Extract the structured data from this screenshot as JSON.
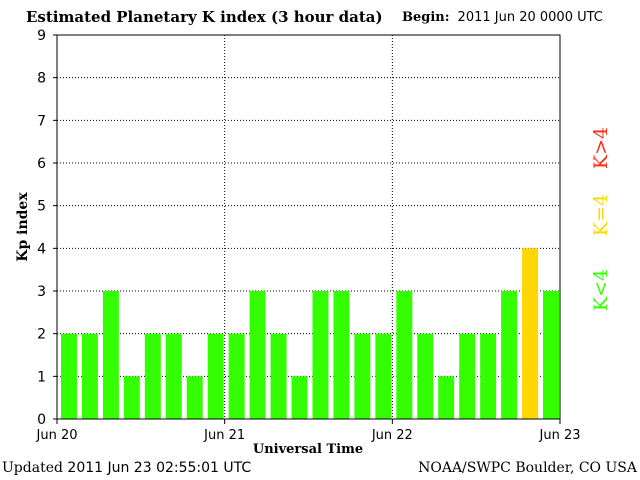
{
  "header": {
    "title": "Estimated Planetary K index (3 hour data)",
    "begin_label": "Begin:",
    "begin_value": "2011 Jun 20 0000 UTC"
  },
  "footer": {
    "updated_label": "Updated",
    "updated_value": "2011 Jun 23 02:55:01 UTC",
    "source": "NOAA/SWPC Boulder, CO USA"
  },
  "legend": {
    "below": "K<4",
    "equal": "K=4",
    "above": "K>4"
  },
  "colors": {
    "below": "#33ff00",
    "equal": "#ffd700",
    "above": "#ff2a10"
  },
  "chart_data": {
    "type": "bar",
    "ylabel": "Kp index",
    "xlabel": "Universal Time",
    "ylim": [
      0,
      9
    ],
    "yticks": [
      0,
      1,
      2,
      3,
      4,
      5,
      6,
      7,
      8,
      9
    ],
    "xtick_labels": [
      "Jun 20",
      "Jun 21",
      "Jun 22",
      "Jun 23"
    ],
    "grid": true,
    "values": [
      2,
      2,
      3,
      1,
      2,
      2,
      1,
      2,
      2,
      3,
      2,
      1,
      3,
      3,
      2,
      2,
      3,
      2,
      1,
      2,
      2,
      3,
      4,
      3
    ]
  }
}
